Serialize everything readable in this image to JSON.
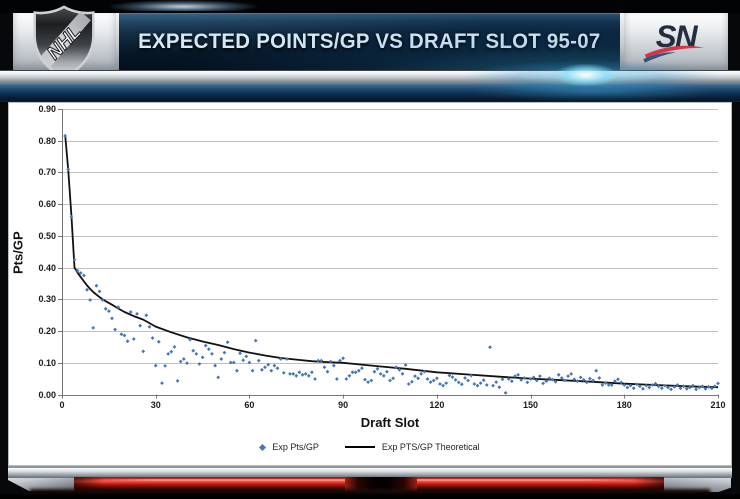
{
  "banner": {
    "title": "EXPECTED POINTS/GP VS DRAFT SLOT 95-07",
    "nhl_logo_text": "NHL",
    "sn_logo_text": "SN"
  },
  "colors": {
    "scatter_marker": "#4576b5",
    "theoretical_curve": "#111111",
    "gridline": "#bfbfbf",
    "axis": "#767676",
    "banner_text": "#d8ecfa",
    "red_bar": "#d6352a"
  },
  "chart_data": {
    "type": "scatter",
    "title": "Expected Points/GP vs Draft Slot 95-07",
    "xlabel": "Draft Slot",
    "ylabel": "Pts/GP",
    "xlim": [
      0,
      210
    ],
    "ylim": [
      0.0,
      0.9
    ],
    "x_ticks": [
      0,
      30,
      60,
      90,
      120,
      150,
      180,
      210
    ],
    "y_ticks": [
      0.9,
      0.8,
      0.7,
      0.6,
      0.5,
      0.4,
      0.3,
      0.2,
      0.1,
      0.0
    ],
    "grid": true,
    "legend_position": "bottom",
    "series": [
      {
        "name": "Exp Pts/GP",
        "type": "scatter",
        "color": "#4576b5",
        "x_start": 1,
        "x_step": 1,
        "y": [
          0.815,
          0.71,
          0.56,
          0.425,
          0.39,
          0.383,
          0.375,
          0.33,
          0.298,
          0.21,
          0.343,
          0.325,
          0.298,
          0.27,
          0.263,
          0.24,
          0.205,
          0.275,
          0.19,
          0.186,
          0.168,
          0.26,
          0.175,
          0.254,
          0.217,
          0.136,
          0.25,
          0.213,
          0.178,
          0.091,
          0.166,
          0.036,
          0.09,
          0.128,
          0.135,
          0.15,
          0.043,
          0.104,
          0.112,
          0.099,
          0.173,
          0.138,
          0.128,
          0.096,
          0.117,
          0.154,
          0.143,
          0.128,
          0.091,
          0.054,
          0.112,
          0.132,
          0.165,
          0.101,
          0.101,
          0.075,
          0.13,
          0.108,
          0.12,
          0.101,
          0.075,
          0.17,
          0.107,
          0.078,
          0.086,
          0.094,
          0.075,
          0.091,
          0.083,
          0.112,
          0.068,
          0.112,
          0.065,
          0.065,
          0.059,
          0.07,
          0.062,
          0.065,
          0.059,
          0.07,
          0.049,
          0.107,
          0.107,
          0.086,
          0.072,
          0.104,
          0.091,
          0.049,
          0.107,
          0.114,
          0.049,
          0.059,
          0.07,
          0.07,
          0.075,
          0.083,
          0.047,
          0.039,
          0.044,
          0.072,
          0.081,
          0.065,
          0.059,
          0.072,
          0.044,
          0.051,
          0.086,
          0.078,
          0.065,
          0.093,
          0.033,
          0.04,
          0.058,
          0.051,
          0.065,
          0.072,
          0.049,
          0.039,
          0.044,
          0.051,
          0.033,
          0.028,
          0.036,
          0.06,
          0.055,
          0.046,
          0.038,
          0.032,
          0.052,
          0.044,
          0.06,
          0.033,
          0.028,
          0.036,
          0.045,
          0.03,
          0.149,
          0.028,
          0.039,
          0.023,
          0.048,
          0.005,
          0.049,
          0.042,
          0.058,
          0.062,
          0.046,
          0.052,
          0.038,
          0.049,
          0.054,
          0.044,
          0.058,
          0.035,
          0.042,
          0.051,
          0.047,
          0.04,
          0.062,
          0.052,
          0.044,
          0.058,
          0.065,
          0.048,
          0.042,
          0.054,
          0.046,
          0.038,
          0.05,
          0.044,
          0.075,
          0.052,
          0.03,
          0.036,
          0.03,
          0.03,
          0.042,
          0.048,
          0.038,
          0.03,
          0.022,
          0.028,
          0.02,
          0.032,
          0.026,
          0.018,
          0.028,
          0.022,
          0.03,
          0.034,
          0.026,
          0.02,
          0.028,
          0.022,
          0.016,
          0.024,
          0.03,
          0.02,
          0.026,
          0.018,
          0.022,
          0.028,
          0.016,
          0.022,
          0.026,
          0.018,
          0.024,
          0.02,
          0.026,
          0.035
        ]
      },
      {
        "name": "Exp PTS/GP Theoretical",
        "type": "line",
        "color": "#111111",
        "x": [
          1,
          2,
          3,
          4,
          5,
          6,
          7,
          8,
          9,
          10,
          12,
          14,
          16,
          18,
          20,
          23,
          26,
          30,
          35,
          40,
          45,
          50,
          55,
          60,
          65,
          70,
          75,
          80,
          85,
          90,
          95,
          100,
          110,
          120,
          130,
          140,
          150,
          160,
          170,
          180,
          190,
          200,
          210
        ],
        "y": [
          0.82,
          0.71,
          0.565,
          0.4,
          0.384,
          0.37,
          0.357,
          0.344,
          0.333,
          0.323,
          0.307,
          0.294,
          0.283,
          0.271,
          0.26,
          0.247,
          0.236,
          0.214,
          0.196,
          0.18,
          0.167,
          0.156,
          0.143,
          0.132,
          0.123,
          0.115,
          0.11,
          0.105,
          0.102,
          0.1,
          0.095,
          0.09,
          0.081,
          0.07,
          0.063,
          0.056,
          0.05,
          0.045,
          0.04,
          0.034,
          0.03,
          0.026,
          0.023
        ]
      }
    ]
  }
}
